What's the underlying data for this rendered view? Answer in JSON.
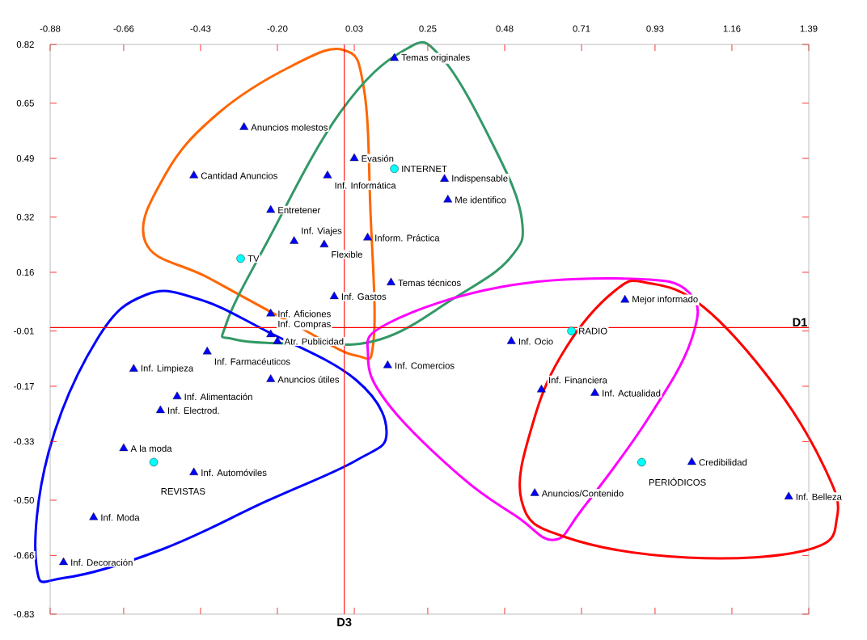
{
  "chart_data": {
    "type": "scatter",
    "xlim": [
      -0.88,
      1.39
    ],
    "ylim": [
      -0.83,
      0.82
    ],
    "xticks": [
      {
        "value": -0.88,
        "label": "-0.88"
      },
      {
        "value": -0.66,
        "label": "-0.66"
      },
      {
        "value": -0.43,
        "label": "-0.43"
      },
      {
        "value": -0.2,
        "label": "-0.20"
      },
      {
        "value": 0.03,
        "label": "0.03"
      },
      {
        "value": 0.25,
        "label": "0.25"
      },
      {
        "value": 0.48,
        "label": "0.48"
      },
      {
        "value": 0.71,
        "label": "0.71"
      },
      {
        "value": 0.93,
        "label": "0.93"
      },
      {
        "value": 1.16,
        "label": "1.16"
      },
      {
        "value": 1.39,
        "label": "1.39"
      }
    ],
    "yticks": [
      {
        "value": 0.82,
        "label": "0.82"
      },
      {
        "value": 0.65,
        "label": "0.65"
      },
      {
        "value": 0.49,
        "label": "0.49"
      },
      {
        "value": 0.32,
        "label": "0.32"
      },
      {
        "value": 0.16,
        "label": "0.16"
      },
      {
        "value": -0.01,
        "label": "-0.01"
      },
      {
        "value": -0.17,
        "label": "-0.17"
      },
      {
        "value": -0.33,
        "label": "-0.33"
      },
      {
        "value": -0.5,
        "label": "-0.50"
      },
      {
        "value": -0.66,
        "label": "-0.66"
      },
      {
        "value": -0.83,
        "label": "-0.83"
      }
    ],
    "ref_lines": [
      {
        "axis": "y",
        "value": 0,
        "label": "D1",
        "color": "#ff0000"
      },
      {
        "axis": "x",
        "value": 0,
        "label": "D3",
        "color": "#ff0000"
      }
    ],
    "series": [
      {
        "color": "#0000ff",
        "marker": "triangle",
        "x": [
          0.15,
          -0.3,
          0.03,
          -0.45,
          -0.05,
          0.3,
          0.31,
          -0.22,
          -0.15,
          -0.06,
          0.07,
          0.14,
          -0.03,
          -0.22,
          -0.22,
          -0.2,
          -0.41,
          0.5,
          0.84,
          0.13,
          -0.63,
          -0.22,
          -0.5,
          -0.55,
          0.59,
          0.75,
          -0.66,
          -0.45,
          1.04,
          0.57,
          1.33,
          -0.75,
          -0.84
        ],
        "values": [
          0.78,
          0.58,
          0.49,
          0.44,
          0.44,
          0.43,
          0.37,
          0.34,
          0.25,
          0.24,
          0.26,
          0.13,
          0.09,
          0.04,
          -0.02,
          -0.04,
          -0.07,
          -0.04,
          0.08,
          -0.11,
          -0.12,
          -0.15,
          -0.2,
          -0.24,
          -0.18,
          -0.19,
          -0.35,
          -0.42,
          -0.39,
          -0.48,
          -0.49,
          -0.55,
          -0.68
        ]
      },
      {
        "color": "#00ffff",
        "marker": "circle",
        "x": [
          0.15,
          -0.31,
          0.68,
          -0.57,
          0.89
        ],
        "values": [
          0.46,
          0.2,
          -0.01,
          -0.39,
          -0.39
        ]
      }
    ],
    "annotations": [
      {
        "text": "Temas originales",
        "x": 0.15,
        "y": 0.78
      },
      {
        "text": "Anuncios molestos",
        "x": -0.3,
        "y": 0.58
      },
      {
        "text": "Evasión",
        "x": 0.03,
        "y": 0.49
      },
      {
        "text": "Cantidad Anuncios",
        "x": -0.45,
        "y": 0.44
      },
      {
        "text": "Inf. Informática",
        "x": -0.05,
        "y": 0.44
      },
      {
        "text": "Indispensable",
        "x": 0.3,
        "y": 0.43
      },
      {
        "text": "Me identifico",
        "x": 0.31,
        "y": 0.37
      },
      {
        "text": "Entretener",
        "x": -0.22,
        "y": 0.34
      },
      {
        "text": "Inf. Viajes",
        "x": -0.15,
        "y": 0.25
      },
      {
        "text": "Flexible",
        "x": -0.06,
        "y": 0.24
      },
      {
        "text": "Inform. Práctica",
        "x": 0.07,
        "y": 0.26
      },
      {
        "text": "Temas técnicos",
        "x": 0.14,
        "y": 0.13
      },
      {
        "text": "Inf. Gastos",
        "x": -0.03,
        "y": 0.09
      },
      {
        "text": "Inf. Aficiones",
        "x": -0.22,
        "y": 0.04
      },
      {
        "text": "Inf. Compras",
        "x": -0.22,
        "y": -0.02
      },
      {
        "text": "Atr. Publicidad",
        "x": -0.2,
        "y": -0.04
      },
      {
        "text": "Inf. Farmacéuticos",
        "x": -0.41,
        "y": -0.07
      },
      {
        "text": "Inf. Ocio",
        "x": 0.5,
        "y": -0.04
      },
      {
        "text": "Mejor informado",
        "x": 0.84,
        "y": 0.08
      },
      {
        "text": "Inf. Comercios",
        "x": 0.13,
        "y": -0.11
      },
      {
        "text": "Inf. Limpieza",
        "x": -0.63,
        "y": -0.12
      },
      {
        "text": "Anuncios útiles",
        "x": -0.22,
        "y": -0.15
      },
      {
        "text": "Inf. Alimentación",
        "x": -0.5,
        "y": -0.2
      },
      {
        "text": "Inf. Electrod.",
        "x": -0.55,
        "y": -0.24
      },
      {
        "text": "Inf. Financiera",
        "x": 0.59,
        "y": -0.18
      },
      {
        "text": "Inf. Actualidad",
        "x": 0.75,
        "y": -0.19
      },
      {
        "text": "A la moda",
        "x": -0.66,
        "y": -0.35
      },
      {
        "text": "Inf. Automóviles",
        "x": -0.45,
        "y": -0.42
      },
      {
        "text": "Credibilidad",
        "x": 1.04,
        "y": -0.39
      },
      {
        "text": "Anuncios/Contenido",
        "x": 0.57,
        "y": -0.48
      },
      {
        "text": "Inf. Belleza",
        "x": 1.33,
        "y": -0.49
      },
      {
        "text": "Inf. Moda",
        "x": -0.75,
        "y": -0.55
      },
      {
        "text": "Inf. Decoración",
        "x": -0.84,
        "y": -0.68
      },
      {
        "text": "INTERNET",
        "x": 0.15,
        "y": 0.46
      },
      {
        "text": "TV",
        "x": -0.31,
        "y": 0.2
      },
      {
        "text": "RADIO",
        "x": 0.68,
        "y": -0.01
      },
      {
        "text": "REVISTAS",
        "x": -0.57,
        "y": -0.39
      },
      {
        "text": "PERIÓDICOS",
        "x": 0.89,
        "y": -0.39
      }
    ]
  }
}
